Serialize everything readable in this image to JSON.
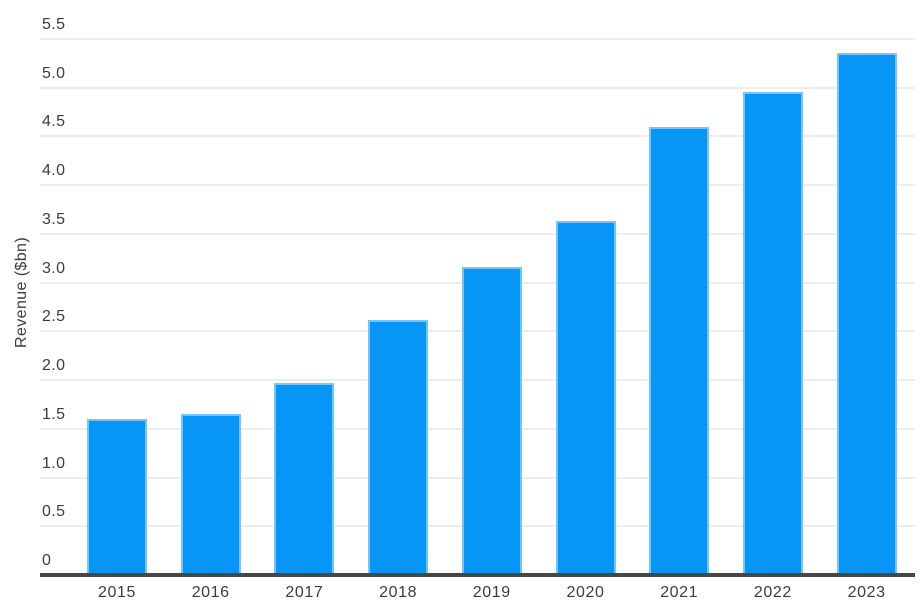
{
  "chart_data": {
    "type": "bar",
    "title": "",
    "xlabel": "",
    "ylabel": "Revenue ($bn)",
    "categories": [
      "2015",
      "2016",
      "2017",
      "2018",
      "2019",
      "2020",
      "2021",
      "2022",
      "2023"
    ],
    "values": [
      1.6,
      1.65,
      1.97,
      2.62,
      3.16,
      3.63,
      4.6,
      4.95,
      5.35
    ],
    "ylim": [
      0,
      5.5
    ],
    "ytick_step": 0.5,
    "yticks": [
      "0",
      "0.5",
      "1.0",
      "1.5",
      "2.0",
      "2.5",
      "3.0",
      "3.5",
      "4.0",
      "4.5",
      "5.0",
      "5.5"
    ],
    "grid": true,
    "legend": false,
    "colors": {
      "bar": "#0796F5",
      "gridline": "#EDEDED",
      "axis_line": "#474747",
      "text": "#3C3C3C",
      "background": "#FFFFFF"
    }
  }
}
